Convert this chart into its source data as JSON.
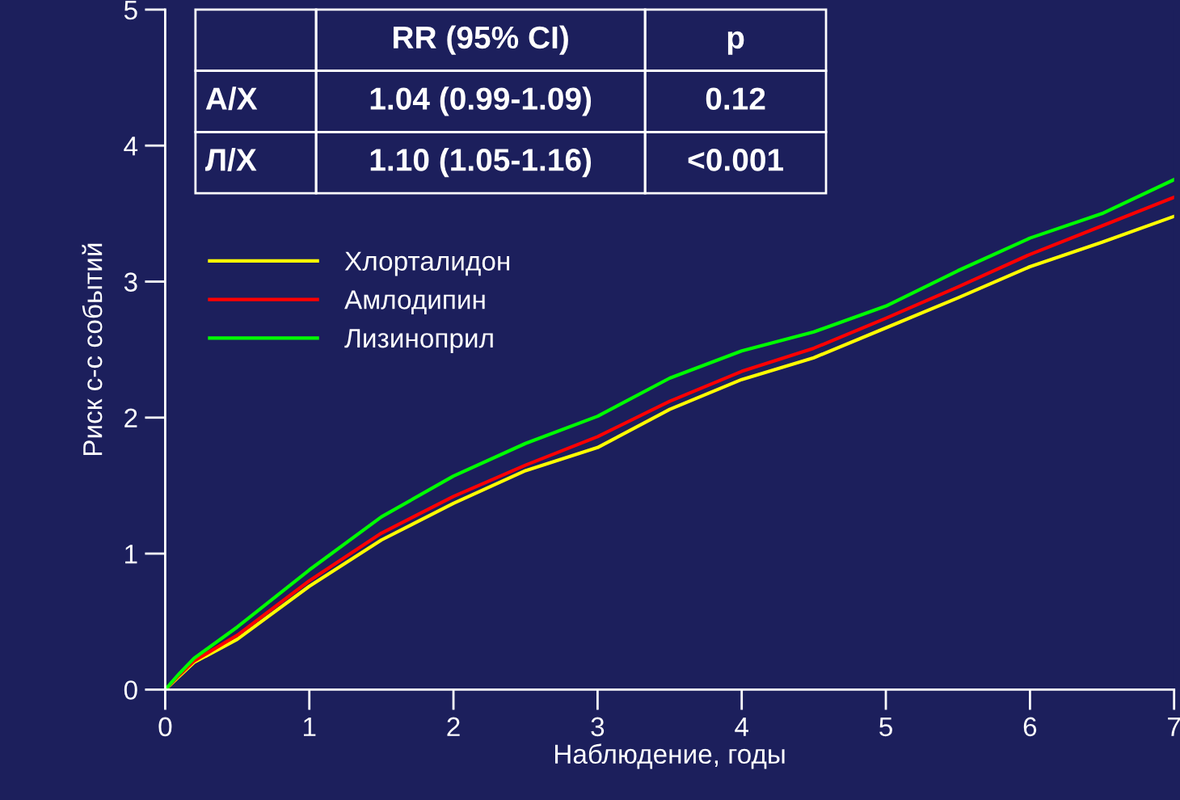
{
  "chart_data": {
    "type": "line",
    "xlabel": "Наблюдение, годы",
    "ylabel": "Риск с-с событий",
    "x": [
      0,
      0.1,
      0.2,
      0.5,
      1,
      1.5,
      2,
      2.5,
      3,
      3.5,
      4,
      4.5,
      5,
      5.5,
      6,
      6.5,
      7
    ],
    "series": [
      {
        "name": "Хлорталидон",
        "color": "#ffff00",
        "values": [
          0,
          0.1,
          0.2,
          0.37,
          0.76,
          1.1,
          1.37,
          1.61,
          1.78,
          2.06,
          2.28,
          2.44,
          2.66,
          2.88,
          3.11,
          3.29,
          3.48
        ]
      },
      {
        "name": "Амлодипин",
        "color": "#ff0000",
        "values": [
          0,
          0.11,
          0.21,
          0.4,
          0.8,
          1.15,
          1.42,
          1.65,
          1.86,
          2.12,
          2.34,
          2.51,
          2.73,
          2.96,
          3.2,
          3.41,
          3.62
        ]
      },
      {
        "name": "Лизиноприл",
        "color": "#00ff00",
        "values": [
          0,
          0.12,
          0.23,
          0.46,
          0.88,
          1.27,
          1.57,
          1.81,
          2.01,
          2.29,
          2.49,
          2.63,
          2.82,
          3.08,
          3.32,
          3.5,
          3.75
        ]
      }
    ],
    "xlim": [
      0,
      7
    ],
    "xticks": [
      0,
      1,
      2,
      3,
      4,
      5,
      6,
      7
    ],
    "ylim": [
      0,
      5
    ],
    "yticks": [
      0,
      1,
      2,
      3,
      4,
      5
    ],
    "grid": false,
    "legend": "left",
    "annotations": [
      "RR (95% CI)",
      "p",
      "А/Х",
      "1.04 (0.99-1.09)",
      "0.12",
      "Л/Х",
      "1.10 (1.05-1.16)",
      "<0.001"
    ]
  }
}
